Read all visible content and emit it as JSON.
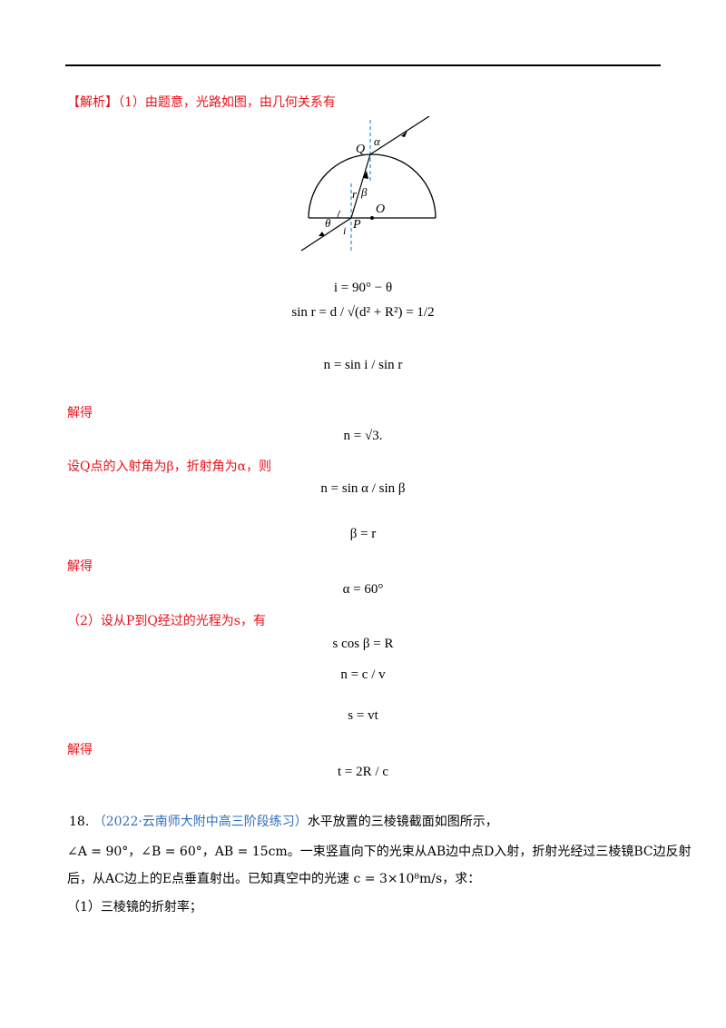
{
  "analysis": {
    "tag": "【解析】",
    "part1_intro": "（1）由题意，光路如图，由几何关系有",
    "solve1": "解得",
    "setQ": "设Q点的入射角为β，折射角为α，则",
    "solve2": "解得",
    "part2_intro": "（2）设从P到Q经过的光程为s，有",
    "solve3": "解得"
  },
  "figure": {
    "labels": {
      "Q": "Q",
      "alpha": "α",
      "r": "r",
      "beta": "β",
      "O": "O",
      "theta": "θ",
      "P": "P",
      "i": "i"
    }
  },
  "equations": {
    "e1": "i = 90° − θ",
    "e2": "sin r = d / √(d² + R²) = 1/2",
    "e3": "n = sin i / sin r",
    "e4": "n = √3.",
    "e5": "n = sin α / sin β",
    "e6": "β = r",
    "e7": "α = 60°",
    "e8": "s cos β = R",
    "e9": "n = c / v",
    "e10": "s = vt",
    "e11": "t = 2R / c"
  },
  "problem18": {
    "number": "18.",
    "source": "（2022·云南师大附中高三阶段练习）",
    "line1_tail": "水平放置的三棱镜截面如图所示，",
    "line2": "∠A = 90°，∠B = 60°，AB = 15cm。一束竖直向下的光束从AB边中点D入射，折射光经过三棱镜BC边反射",
    "line3": "后，从AC边上的E点垂直射出。已知真空中的光速 c = 3×10⁸m/s，求：",
    "q1": "（1）三棱镜的折射率；"
  }
}
